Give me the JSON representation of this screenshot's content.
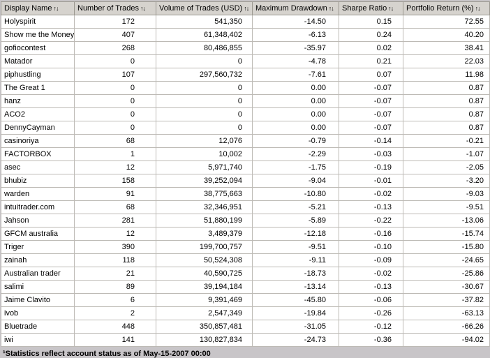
{
  "page": {
    "background": "#c8c5c8",
    "header_bg": "#d6d3ce",
    "grid_color": "#bdbab5"
  },
  "table": {
    "sort_icon": "↑↓",
    "columns": [
      {
        "key": "name",
        "label": "Display Name"
      },
      {
        "key": "trades",
        "label": "Number of Trades"
      },
      {
        "key": "volume",
        "label": "Volume of Trades (USD)"
      },
      {
        "key": "drawdown",
        "label": "Maximum Drawdown"
      },
      {
        "key": "sharpe",
        "label": "Sharpe Ratio"
      },
      {
        "key": "return",
        "label": "Portfolio Return (%)"
      }
    ],
    "rows": [
      {
        "name": "Holyspirit",
        "trades": "172",
        "volume": "541,350",
        "drawdown": "-14.50",
        "sharpe": "0.15",
        "return": "72.55"
      },
      {
        "name": "Show me the Money",
        "trades": "407",
        "volume": "61,348,402",
        "drawdown": "-6.13",
        "sharpe": "0.24",
        "return": "40.20"
      },
      {
        "name": "gofiocontest",
        "trades": "268",
        "volume": "80,486,855",
        "drawdown": "-35.97",
        "sharpe": "0.02",
        "return": "38.41"
      },
      {
        "name": "Matador",
        "trades": "0",
        "volume": "0",
        "drawdown": "-4.78",
        "sharpe": "0.21",
        "return": "22.03"
      },
      {
        "name": "piphustling",
        "trades": "107",
        "volume": "297,560,732",
        "drawdown": "-7.61",
        "sharpe": "0.07",
        "return": "11.98"
      },
      {
        "name": "The Great 1",
        "trades": "0",
        "volume": "0",
        "drawdown": "0.00",
        "sharpe": "-0.07",
        "return": "0.87"
      },
      {
        "name": "hanz",
        "trades": "0",
        "volume": "0",
        "drawdown": "0.00",
        "sharpe": "-0.07",
        "return": "0.87"
      },
      {
        "name": "ACO2",
        "trades": "0",
        "volume": "0",
        "drawdown": "0.00",
        "sharpe": "-0.07",
        "return": "0.87"
      },
      {
        "name": "DennyCayman",
        "trades": "0",
        "volume": "0",
        "drawdown": "0.00",
        "sharpe": "-0.07",
        "return": "0.87"
      },
      {
        "name": "casinoriya",
        "trades": "68",
        "volume": "12,076",
        "drawdown": "-0.79",
        "sharpe": "-0.14",
        "return": "-0.21"
      },
      {
        "name": "FACTORBOX",
        "trades": "1",
        "volume": "10,002",
        "drawdown": "-2.29",
        "sharpe": "-0.03",
        "return": "-1.07"
      },
      {
        "name": "asec",
        "trades": "12",
        "volume": "5,971,740",
        "drawdown": "-1.75",
        "sharpe": "-0.19",
        "return": "-2.05"
      },
      {
        "name": "bhubiz",
        "trades": "158",
        "volume": "39,252,094",
        "drawdown": "-9.04",
        "sharpe": "-0.01",
        "return": "-3.20"
      },
      {
        "name": "warden",
        "trades": "91",
        "volume": "38,775,663",
        "drawdown": "-10.80",
        "sharpe": "-0.02",
        "return": "-9.03"
      },
      {
        "name": "intuitrader.com",
        "trades": "68",
        "volume": "32,346,951",
        "drawdown": "-5.21",
        "sharpe": "-0.13",
        "return": "-9.51"
      },
      {
        "name": "Jahson",
        "trades": "281",
        "volume": "51,880,199",
        "drawdown": "-5.89",
        "sharpe": "-0.22",
        "return": "-13.06"
      },
      {
        "name": "GFCM australia",
        "trades": "12",
        "volume": "3,489,379",
        "drawdown": "-12.18",
        "sharpe": "-0.16",
        "return": "-15.74"
      },
      {
        "name": "Triger",
        "trades": "390",
        "volume": "199,700,757",
        "drawdown": "-9.51",
        "sharpe": "-0.10",
        "return": "-15.80"
      },
      {
        "name": "zainah",
        "trades": "118",
        "volume": "50,524,308",
        "drawdown": "-9.11",
        "sharpe": "-0.09",
        "return": "-24.65"
      },
      {
        "name": "Australian trader",
        "trades": "21",
        "volume": "40,590,725",
        "drawdown": "-18.73",
        "sharpe": "-0.02",
        "return": "-25.86"
      },
      {
        "name": "salimi",
        "trades": "89",
        "volume": "39,194,184",
        "drawdown": "-13.14",
        "sharpe": "-0.13",
        "return": "-30.67"
      },
      {
        "name": "Jaime Clavito",
        "trades": "6",
        "volume": "9,391,469",
        "drawdown": "-45.80",
        "sharpe": "-0.06",
        "return": "-37.82"
      },
      {
        "name": "ivob",
        "trades": "2",
        "volume": "2,547,349",
        "drawdown": "-19.84",
        "sharpe": "-0.26",
        "return": "-63.13"
      },
      {
        "name": "Bluetrade",
        "trades": "448",
        "volume": "350,857,481",
        "drawdown": "-31.05",
        "sharpe": "-0.12",
        "return": "-66.26"
      },
      {
        "name": "iwi",
        "trades": "141",
        "volume": "130,827,834",
        "drawdown": "-24.73",
        "sharpe": "-0.36",
        "return": "-94.02"
      }
    ]
  },
  "footer": {
    "note": "¹Statistics reflect account status as of May-15-2007 00:00"
  }
}
